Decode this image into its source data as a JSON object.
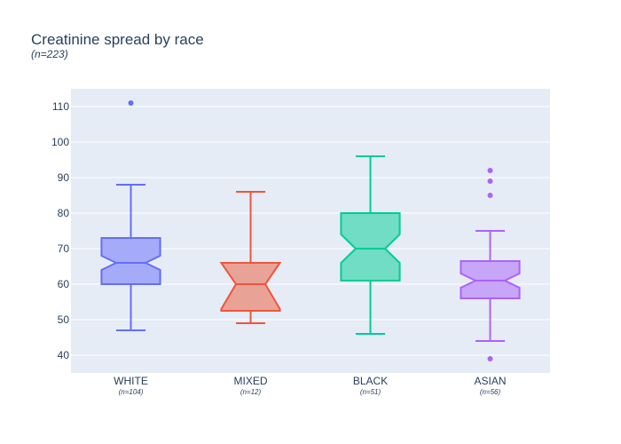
{
  "chart_data": {
    "type": "box",
    "title": "Creatinine spread by race",
    "subtitle": "(n=223)",
    "xlabel": "",
    "ylabel": "",
    "ylim": [
      35,
      115
    ],
    "yticks": [
      40,
      50,
      60,
      70,
      80,
      90,
      100,
      110
    ],
    "grid": true,
    "notched": true,
    "series": [
      {
        "name": "WHITE",
        "count_label": "(n=104)",
        "color": "#636efa",
        "fill": "#a5abf8",
        "min": 47,
        "q1": 60,
        "median": 66,
        "q3": 73,
        "max": 88,
        "notch_low": 64,
        "notch_high": 68,
        "outliers": [
          111
        ]
      },
      {
        "name": "MIXED",
        "count_label": "(n=12)",
        "color": "#ef553b",
        "fill": "#e9a396",
        "min": 49,
        "q1": 52.5,
        "median": 60,
        "q3": 66,
        "max": 86,
        "notch_low": 53,
        "notch_high": 66,
        "outliers": []
      },
      {
        "name": "BLACK",
        "count_label": "(n=51)",
        "color": "#00cc96",
        "fill": "#70ddc4",
        "min": 46,
        "q1": 61,
        "median": 70,
        "q3": 80,
        "max": 96,
        "notch_low": 66,
        "notch_high": 74,
        "outliers": []
      },
      {
        "name": "ASIAN",
        "count_label": "(n=56)",
        "color": "#ab63fa",
        "fill": "#c7a5f8",
        "min": 44,
        "q1": 56,
        "median": 61,
        "q3": 66.5,
        "max": 75,
        "notch_low": 59,
        "notch_high": 63,
        "outliers": [
          92,
          89,
          85,
          39
        ]
      }
    ]
  },
  "colors": {
    "plot_background": "#e5ecf6",
    "grid": "#ffffff",
    "text": "#2a3f5f"
  }
}
